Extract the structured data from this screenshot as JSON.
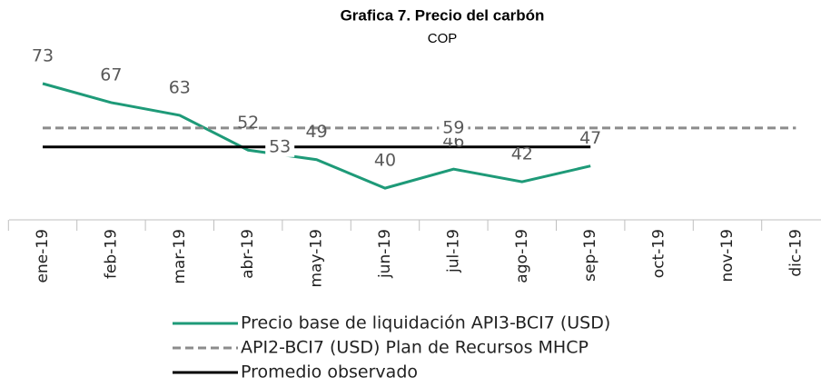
{
  "chart_data": {
    "type": "line",
    "title": "Grafica 7. Precio del carbón",
    "subtitle": "COP",
    "categories": [
      "ene-19",
      "feb-19",
      "mar-19",
      "abr-19",
      "may-19",
      "jun-19",
      "jul-19",
      "ago-19",
      "sep-19",
      "oct-19",
      "nov-19",
      "dic-19"
    ],
    "series": [
      {
        "name": "Precio base de liquidación API3-BCI7 (USD)",
        "color": "#1e9a78",
        "dash": "solid",
        "values": [
          73,
          67,
          63,
          52,
          49,
          40,
          46,
          42,
          47,
          null,
          null,
          null
        ]
      },
      {
        "name": "API2-BCI7 (USD) Plan de Recursos MHCP",
        "color": "#8c8c8c",
        "dash": "dashed",
        "values": [
          59,
          59,
          59,
          59,
          59,
          59,
          59,
          59,
          59,
          59,
          59,
          59
        ]
      },
      {
        "name": "Promedio observado",
        "color": "#000000",
        "dash": "solid",
        "values": [
          53,
          53,
          53,
          53,
          53,
          53,
          53,
          53,
          53,
          null,
          null,
          null
        ]
      }
    ],
    "ylim": [
      30,
      82
    ],
    "legend": "bottom"
  }
}
